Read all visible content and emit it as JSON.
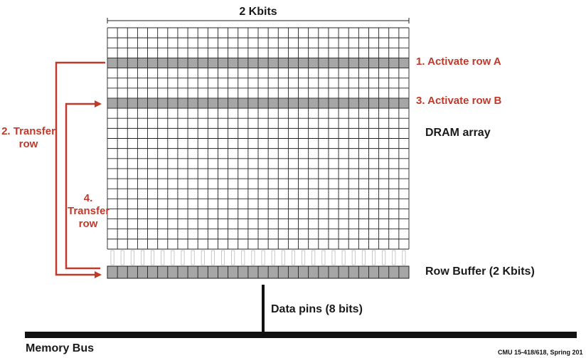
{
  "labels": {
    "width": "2 Kbits",
    "step1": "1. Activate row A",
    "step3": "3. Activate row B",
    "dram_array": "DRAM array",
    "step2_line1": "2. Transfer",
    "step2_line2": "row",
    "step4_line1": "4.",
    "step4_line2": "Transfer",
    "step4_line3": "row",
    "row_buffer": "Row Buffer (2 Kbits)",
    "data_pins": "Data pins (8 bits)",
    "memory_bus": "Memory Bus",
    "footer": "CMU 15-418/618, Spring 201"
  },
  "colors": {
    "accent": "#c0392b",
    "grid_line": "#222222",
    "active_row_fill": "#a6a6a6",
    "buffer_fill": "#a6a6a6",
    "bus": "#111111"
  }
}
